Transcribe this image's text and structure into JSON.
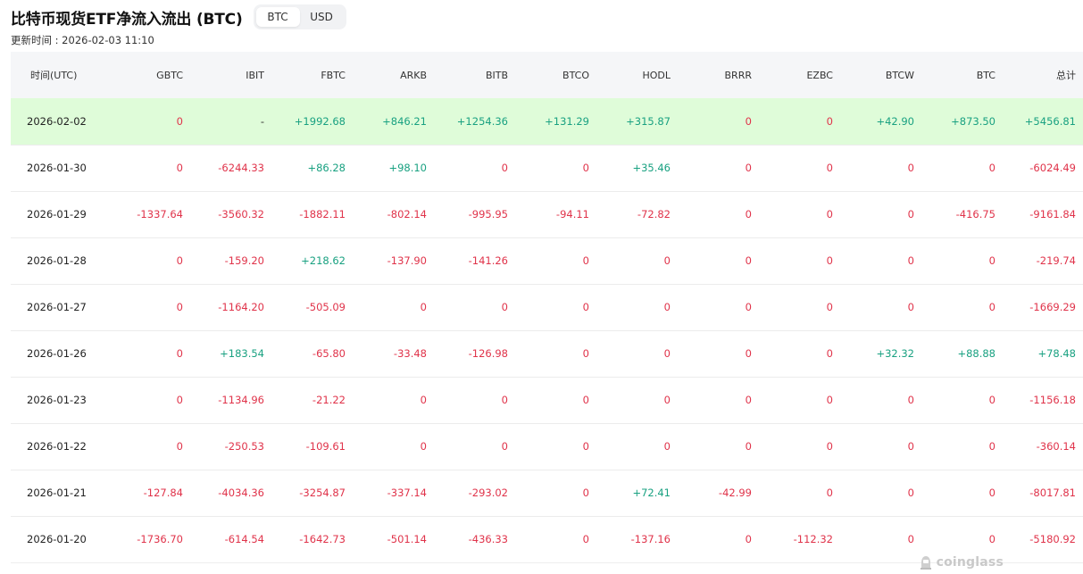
{
  "header": {
    "title": "比特币现货ETF净流入流出 (BTC)",
    "updated": "更新时间 : 2026-02-03 11:10",
    "toggle": [
      "BTC",
      "USD"
    ]
  },
  "table": {
    "headers": [
      "时间(UTC)",
      "GBTC",
      "IBIT",
      "FBTC",
      "ARKB",
      "BITB",
      "BTCO",
      "HODL",
      "BRRR",
      "EZBC",
      "BTCW",
      "BTC",
      "总计"
    ],
    "rows": [
      [
        "2026-02-02",
        "0",
        "-",
        "+1992.68",
        "+846.21",
        "+1254.36",
        "+131.29",
        "+315.87",
        "0",
        "0",
        "+42.90",
        "+873.50",
        "+5456.81"
      ],
      [
        "2026-01-30",
        "0",
        "-6244.33",
        "+86.28",
        "+98.10",
        "0",
        "0",
        "+35.46",
        "0",
        "0",
        "0",
        "0",
        "-6024.49"
      ],
      [
        "2026-01-29",
        "-1337.64",
        "-3560.32",
        "-1882.11",
        "-802.14",
        "-995.95",
        "-94.11",
        "-72.82",
        "0",
        "0",
        "0",
        "-416.75",
        "-9161.84"
      ],
      [
        "2026-01-28",
        "0",
        "-159.20",
        "+218.62",
        "-137.90",
        "-141.26",
        "0",
        "0",
        "0",
        "0",
        "0",
        "0",
        "-219.74"
      ],
      [
        "2026-01-27",
        "0",
        "-1164.20",
        "-505.09",
        "0",
        "0",
        "0",
        "0",
        "0",
        "0",
        "0",
        "0",
        "-1669.29"
      ],
      [
        "2026-01-26",
        "0",
        "+183.54",
        "-65.80",
        "-33.48",
        "-126.98",
        "0",
        "0",
        "0",
        "0",
        "+32.32",
        "+88.88",
        "+78.48"
      ],
      [
        "2026-01-23",
        "0",
        "-1134.96",
        "-21.22",
        "0",
        "0",
        "0",
        "0",
        "0",
        "0",
        "0",
        "0",
        "-1156.18"
      ],
      [
        "2026-01-22",
        "0",
        "-250.53",
        "-109.61",
        "0",
        "0",
        "0",
        "0",
        "0",
        "0",
        "0",
        "0",
        "-360.14"
      ],
      [
        "2026-01-21",
        "-127.84",
        "-4034.36",
        "-3254.87",
        "-337.14",
        "-293.02",
        "0",
        "+72.41",
        "-42.99",
        "0",
        "0",
        "0",
        "-8017.81"
      ],
      [
        "2026-01-20",
        "-1736.70",
        "-614.54",
        "-1642.73",
        "-501.14",
        "-436.33",
        "0",
        "-137.16",
        "0",
        "-112.32",
        "0",
        "0",
        "-5180.92"
      ]
    ]
  },
  "colors": {
    "positive": "#19a181",
    "negative": "#e0334a",
    "highlight_row": "#dffcd9"
  },
  "watermark": {
    "text": "coinglass",
    "icon": "coinglass-logo-icon"
  }
}
